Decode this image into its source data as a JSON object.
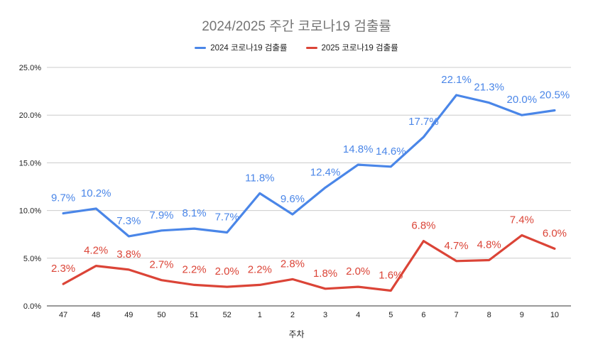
{
  "chart_data": {
    "type": "line",
    "title": "2024/2025 주간 코로나19 검출률",
    "xlabel": "주차",
    "ylabel": "",
    "categories": [
      "47",
      "48",
      "49",
      "50",
      "51",
      "52",
      "1",
      "2",
      "3",
      "4",
      "5",
      "6",
      "7",
      "8",
      "9",
      "10"
    ],
    "ylim": [
      0,
      25
    ],
    "yticks": [
      "0.0%",
      "5.0%",
      "10.0%",
      "15.0%",
      "20.0%",
      "25.0%"
    ],
    "ytick_values": [
      0,
      5,
      10,
      15,
      20,
      25
    ],
    "grid": true,
    "legend_position": "top",
    "series": [
      {
        "name": "2024 코로나19 검출률",
        "color": "#4a86e8",
        "values": [
          9.7,
          10.2,
          7.3,
          7.9,
          8.1,
          7.7,
          11.8,
          9.6,
          12.4,
          14.8,
          14.6,
          17.7,
          22.1,
          21.3,
          20.0,
          20.5
        ],
        "labels": [
          "9.7%",
          "10.2%",
          "7.3%",
          "7.9%",
          "8.1%",
          "7.7%",
          "11.8%",
          "9.6%",
          "12.4%",
          "14.8%",
          "14.6%",
          "17.7%",
          "22.1%",
          "21.3%",
          "20.0%",
          "20.5%"
        ]
      },
      {
        "name": "2025 코로나19 검출률",
        "color": "#db4437",
        "values": [
          2.3,
          4.2,
          3.8,
          2.7,
          2.2,
          2.0,
          2.2,
          2.8,
          1.8,
          2.0,
          1.6,
          6.8,
          4.7,
          4.8,
          7.4,
          6.0
        ],
        "labels": [
          "2.3%",
          "4.2%",
          "3.8%",
          "2.7%",
          "2.2%",
          "2.0%",
          "2.2%",
          "2.8%",
          "1.8%",
          "2.0%",
          "1.6%",
          "6.8%",
          "4.7%",
          "4.8%",
          "7.4%",
          "6.0%"
        ]
      }
    ]
  }
}
